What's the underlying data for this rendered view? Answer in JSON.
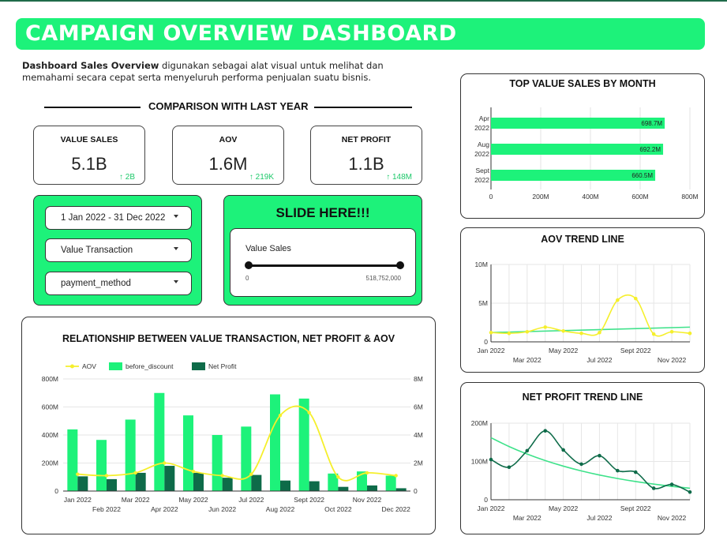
{
  "header": {
    "title": "CAMPAIGN OVERVIEW DASHBOARD"
  },
  "intro": {
    "bold": "Dashboard Sales Overview",
    "text": "digunakan sebagai alat visual untuk melihat dan memahami secara cepat serta menyeluruh performa penjualan suatu bisnis."
  },
  "comparison": {
    "title": "COMPARISON WITH LAST YEAR",
    "kpis": [
      {
        "label": "VALUE SALES",
        "value": "5.1B",
        "delta": "↑ 2B"
      },
      {
        "label": "AOV",
        "value": "1.6M",
        "delta": "↑ 219K"
      },
      {
        "label": "NET PROFIT",
        "value": "1.1B",
        "delta": "↑ 148M"
      }
    ]
  },
  "filters": {
    "date_range": "1 Jan 2022 - 31 Dec 2022",
    "metric": "Value Transaction",
    "dimension": "payment_method"
  },
  "slider": {
    "title": "SLIDE HERE!!!",
    "label": "Value Sales",
    "min": "0",
    "max": "518,752,000"
  },
  "colors": {
    "accent": "#1df27a",
    "dark_green": "#0e6b49",
    "yellow": "#f5ef2c",
    "trend": "#3ee28a"
  },
  "chart_data": [
    {
      "id": "top_value_sales",
      "type": "bar",
      "orientation": "horizontal",
      "title": "TOP VALUE SALES BY MONTH",
      "categories": [
        [
          "Apr",
          "2022"
        ],
        [
          "Aug",
          "2022"
        ],
        [
          "Sept",
          "2022"
        ]
      ],
      "values": [
        698.7,
        692.2,
        660.5
      ],
      "value_labels": [
        "698.7M",
        "692.2M",
        "660.5M"
      ],
      "xlim": [
        0,
        800
      ],
      "ticks": [
        "0",
        "200M",
        "400M",
        "600M",
        "800M"
      ]
    },
    {
      "id": "aov_trend",
      "type": "line",
      "title": "AOV TREND LINE",
      "months": [
        1,
        2,
        3,
        4,
        5,
        6,
        7,
        8,
        9,
        10,
        11,
        12
      ],
      "values": [
        1.2,
        1.1,
        1.3,
        1.9,
        1.4,
        1.1,
        1.2,
        5.4,
        5.6,
        1.0,
        1.3,
        1.1
      ],
      "trend": [
        1.2,
        1.9
      ],
      "ylim": [
        0,
        10
      ],
      "yticks": [
        "0",
        "5M",
        "10M"
      ],
      "xticks_top": [
        "Jan 2022",
        "May 2022",
        "Sept 2022"
      ],
      "xticks_bottom": [
        "Mar 2022",
        "Jul 2022",
        "Nov 2022"
      ]
    },
    {
      "id": "relationship",
      "type": "bar",
      "title": "RELATIONSHIP BETWEEN VALUE TRANSACTION, NET PROFIT & AOV",
      "legend": [
        "AOV",
        "before_discount",
        "Net Profit"
      ],
      "categories": [
        "Jan 2022",
        "Feb 2022",
        "Mar 2022",
        "Apr 2022",
        "May 2022",
        "Jun 2022",
        "Jul 2022",
        "Aug 2022",
        "Sept 2022",
        "Oct 2022",
        "Nov 2022",
        "Dec 2022"
      ],
      "series": [
        {
          "name": "before_discount",
          "values": [
            440,
            365,
            510,
            700,
            540,
            400,
            460,
            690,
            660,
            125,
            140,
            110
          ]
        },
        {
          "name": "Net Profit",
          "values": [
            105,
            85,
            130,
            180,
            130,
            95,
            115,
            75,
            70,
            30,
            40,
            20
          ]
        },
        {
          "name": "AOV",
          "axis": "right",
          "values": [
            1.2,
            1.1,
            1.3,
            2.0,
            1.4,
            1.1,
            1.2,
            5.4,
            5.6,
            1.0,
            1.3,
            1.1
          ]
        }
      ],
      "ylim": [
        0,
        800
      ],
      "y2lim": [
        0,
        8
      ],
      "yticks": [
        "0",
        "200M",
        "400M",
        "600M",
        "800M"
      ],
      "y2ticks": [
        "0",
        "2M",
        "4M",
        "6M",
        "8M"
      ],
      "xticks_top": [
        "Jan 2022",
        "Mar 2022",
        "May 2022",
        "Jul 2022",
        "Sept 2022",
        "Nov 2022"
      ],
      "xticks_bottom": [
        "Feb 2022",
        "Apr 2022",
        "Jun 2022",
        "Aug 2022",
        "Oct 2022",
        "Dec 2022"
      ]
    },
    {
      "id": "net_profit_trend",
      "type": "line",
      "title": "NET PROFIT TREND LINE",
      "months": [
        1,
        2,
        3,
        4,
        5,
        6,
        7,
        8,
        9,
        10,
        11,
        12
      ],
      "values": [
        105,
        85,
        128,
        180,
        130,
        93,
        115,
        76,
        72,
        30,
        40,
        20
      ],
      "trend": [
        162,
        30
      ],
      "ylim": [
        0,
        200
      ],
      "yticks": [
        "0",
        "100M",
        "200M"
      ],
      "xticks_top": [
        "Jan 2022",
        "May 2022",
        "Sept 2022"
      ],
      "xticks_bottom": [
        "Mar 2022",
        "Jul 2022",
        "Nov 2022"
      ]
    }
  ]
}
